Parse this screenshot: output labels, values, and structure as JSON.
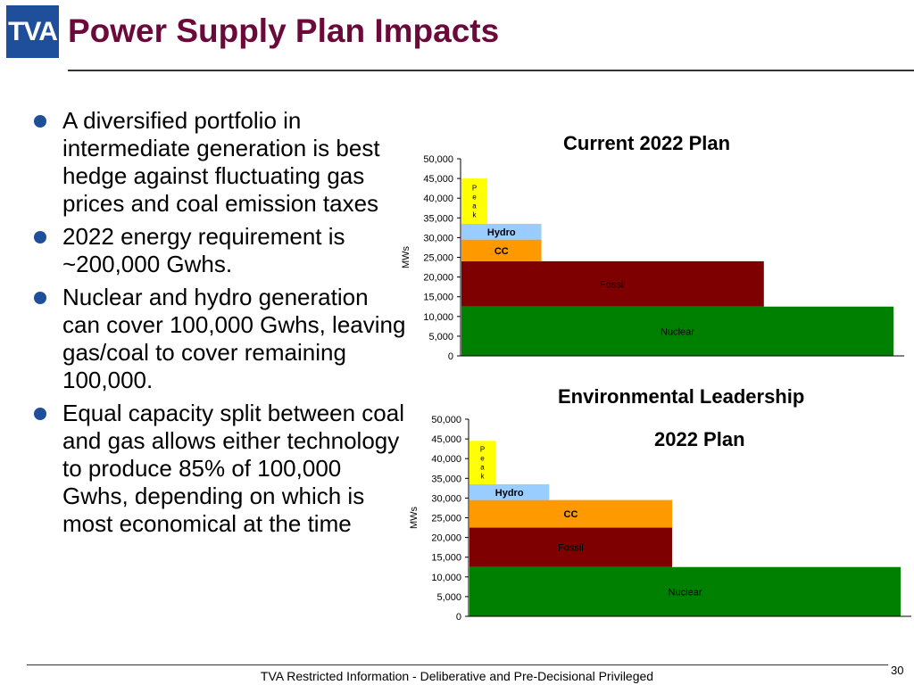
{
  "header": {
    "logo_text": "TVA",
    "title": "Power Supply Plan Impacts"
  },
  "bullets": [
    "A diversified portfolio in intermediate generation is best hedge against fluctuating gas prices and coal emission taxes",
    "2022 energy requirement is ~200,000 Gwhs.",
    "Nuclear and hydro generation can cover 100,000 Gwhs, leaving gas/coal to cover remaining 100,000.",
    "Equal capacity split between coal and gas allows either technology to produce 85% of 100,000 Gwhs, depending on which is most economical at the time"
  ],
  "colors": {
    "title": "#6b0a3a",
    "logo": "#1f4e9a",
    "bullet": "#1f4e9a",
    "nuclear": "#008000",
    "fossil": "#7f0000",
    "cc": "#ff9900",
    "hydro": "#99ccff",
    "peak": "#ffff00"
  },
  "chart_data": [
    {
      "type": "bar",
      "title": "Current 2022 Plan",
      "ylabel": "MWs",
      "ylim": [
        0,
        50000
      ],
      "yticks": [
        "0",
        "5,000",
        "10,000",
        "15,000",
        "20,000",
        "25,000",
        "30,000",
        "35,000",
        "40,000",
        "45,000",
        "50,000"
      ],
      "x_unit": "fraction of hours in year",
      "series": [
        {
          "name": "Nuclear",
          "y0": 0,
          "y1": 12500,
          "x_fraction": 1.0
        },
        {
          "name": "Fossil",
          "y0": 12500,
          "y1": 24000,
          "x_fraction": 0.7
        },
        {
          "name": "CC",
          "y0": 24000,
          "y1": 29500,
          "x_fraction": 0.185
        },
        {
          "name": "Hydro",
          "y0": 29500,
          "y1": 33500,
          "x_fraction": 0.185
        },
        {
          "name": "Peak",
          "y0": 33500,
          "y1": 45000,
          "x_fraction": 0.06,
          "label_letters": [
            "P",
            "e",
            "a",
            "k"
          ]
        }
      ]
    },
    {
      "type": "bar",
      "title": "Environmental Leadership",
      "subtitle": "2022 Plan",
      "ylabel": "MWs",
      "ylim": [
        0,
        50000
      ],
      "yticks": [
        "0",
        "5,000",
        "10,000",
        "15,000",
        "20,000",
        "25,000",
        "30,000",
        "35,000",
        "40,000",
        "45,000",
        "50,000"
      ],
      "x_unit": "fraction of hours in year",
      "series": [
        {
          "name": "Nuclear",
          "y0": 0,
          "y1": 12500,
          "x_fraction": 1.0
        },
        {
          "name": "Fossil",
          "y0": 12500,
          "y1": 22500,
          "x_fraction": 0.47
        },
        {
          "name": "CC",
          "y0": 22500,
          "y1": 29500,
          "x_fraction": 0.47
        },
        {
          "name": "Hydro",
          "y0": 29500,
          "y1": 33500,
          "x_fraction": 0.185
        },
        {
          "name": "Peak",
          "y0": 33500,
          "y1": 44500,
          "x_fraction": 0.06,
          "label_letters": [
            "P",
            "e",
            "a",
            "k"
          ]
        }
      ]
    }
  ],
  "footer": {
    "text": "TVA Restricted Information - Deliberative and Pre-Decisional Privileged",
    "page_number": "30"
  }
}
